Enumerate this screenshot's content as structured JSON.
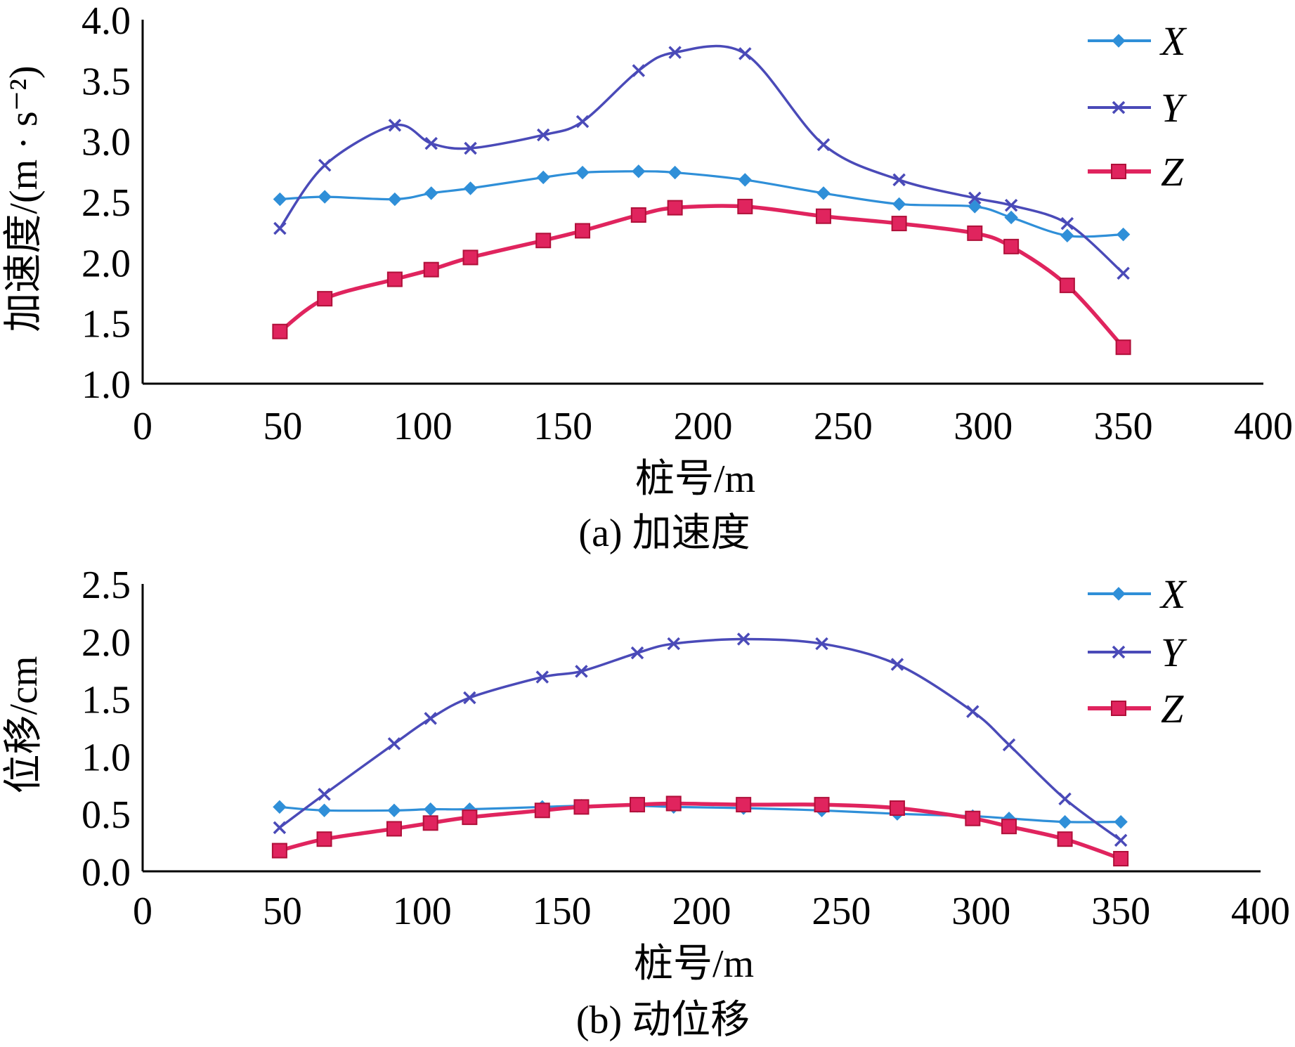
{
  "chart_data": [
    {
      "type": "line",
      "id": "a",
      "caption": "(a) 加速度",
      "xlabel": "桩号/m",
      "ylabel": "加速度/(m · s⁻²)",
      "xlim": [
        0,
        400
      ],
      "ylim": [
        1.0,
        4.0
      ],
      "xticks": [
        "0",
        "50",
        "100",
        "150",
        "200",
        "250",
        "300",
        "350",
        "400"
      ],
      "yticks": [
        "1.0",
        "1.5",
        "2.0",
        "2.5",
        "3.0",
        "3.5",
        "4.0"
      ],
      "legend": "top-right",
      "series": [
        {
          "name": "X",
          "marker": "diamond",
          "color": "#2f8fd8",
          "x": [
            49,
            65,
            90,
            103,
            117,
            143,
            157,
            177,
            190,
            215,
            243,
            270,
            297,
            310,
            330,
            350
          ],
          "y": [
            2.52,
            2.54,
            2.52,
            2.57,
            2.61,
            2.7,
            2.74,
            2.75,
            2.74,
            2.68,
            2.57,
            2.48,
            2.46,
            2.37,
            2.22,
            2.23
          ]
        },
        {
          "name": "Y",
          "marker": "x",
          "color": "#4a4ab8",
          "x": [
            49,
            65,
            90,
            103,
            117,
            143,
            157,
            177,
            190,
            215,
            243,
            270,
            297,
            310,
            330,
            350
          ],
          "y": [
            2.28,
            2.8,
            3.13,
            2.98,
            2.94,
            3.05,
            3.16,
            3.58,
            3.73,
            3.72,
            2.97,
            2.68,
            2.53,
            2.47,
            2.32,
            1.91
          ]
        },
        {
          "name": "Z",
          "marker": "square",
          "color": "#e0245e",
          "x": [
            49,
            65,
            90,
            103,
            117,
            143,
            157,
            177,
            190,
            215,
            243,
            270,
            297,
            310,
            330,
            350
          ],
          "y": [
            1.43,
            1.7,
            1.86,
            1.94,
            2.04,
            2.18,
            2.26,
            2.39,
            2.45,
            2.46,
            2.38,
            2.32,
            2.24,
            2.13,
            1.81,
            1.3
          ]
        }
      ]
    },
    {
      "type": "line",
      "id": "b",
      "caption": "(b) 动位移",
      "xlabel": "桩号/m",
      "ylabel": "位移/cm",
      "xlim": [
        0,
        400
      ],
      "ylim": [
        0.0,
        2.5
      ],
      "xticks": [
        "0",
        "50",
        "100",
        "150",
        "200",
        "250",
        "300",
        "350",
        "400"
      ],
      "yticks": [
        "0.0",
        "0.5",
        "1.0",
        "1.5",
        "2.0",
        "2.5"
      ],
      "legend": "top-right",
      "series": [
        {
          "name": "X",
          "marker": "diamond",
          "color": "#2f8fd8",
          "x": [
            49,
            65,
            90,
            103,
            117,
            143,
            157,
            177,
            190,
            215,
            243,
            270,
            297,
            310,
            330,
            350
          ],
          "y": [
            0.56,
            0.53,
            0.53,
            0.54,
            0.54,
            0.56,
            0.57,
            0.57,
            0.56,
            0.55,
            0.53,
            0.5,
            0.48,
            0.46,
            0.43,
            0.43
          ]
        },
        {
          "name": "Y",
          "marker": "x",
          "color": "#4a4ab8",
          "x": [
            49,
            65,
            90,
            103,
            117,
            143,
            157,
            177,
            190,
            215,
            243,
            270,
            297,
            310,
            330,
            350
          ],
          "y": [
            0.38,
            0.67,
            1.11,
            1.33,
            1.51,
            1.69,
            1.74,
            1.9,
            1.98,
            2.02,
            1.98,
            1.8,
            1.39,
            1.1,
            0.63,
            0.27
          ]
        },
        {
          "name": "Z",
          "marker": "square",
          "color": "#e0245e",
          "x": [
            49,
            65,
            90,
            103,
            117,
            143,
            157,
            177,
            190,
            215,
            243,
            270,
            297,
            310,
            330,
            350
          ],
          "y": [
            0.18,
            0.28,
            0.37,
            0.42,
            0.47,
            0.53,
            0.56,
            0.58,
            0.59,
            0.58,
            0.58,
            0.55,
            0.46,
            0.39,
            0.28,
            0.11
          ]
        }
      ]
    }
  ]
}
